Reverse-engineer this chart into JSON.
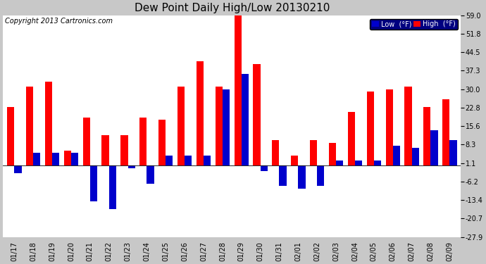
{
  "title": "Dew Point Daily High/Low 20130210",
  "copyright": "Copyright 2013 Cartronics.com",
  "legend_low": "Low  (°F)",
  "legend_high": "High  (°F)",
  "dates": [
    "01/17",
    "01/18",
    "01/19",
    "01/20",
    "01/21",
    "01/22",
    "01/23",
    "01/24",
    "01/25",
    "01/26",
    "01/27",
    "01/28",
    "01/29",
    "01/30",
    "01/31",
    "02/01",
    "02/02",
    "02/03",
    "02/04",
    "02/05",
    "02/06",
    "02/07",
    "02/08",
    "02/09"
  ],
  "high": [
    23,
    31,
    33,
    6,
    19,
    12,
    12,
    19,
    18,
    31,
    41,
    31,
    62,
    40,
    10,
    4,
    10,
    9,
    21,
    29,
    30,
    31,
    23,
    26
  ],
  "low": [
    -3,
    5,
    5,
    5,
    -14,
    -17,
    -1,
    -7,
    4,
    4,
    4,
    30,
    36,
    -2,
    -8,
    -9,
    -8,
    2,
    2,
    2,
    8,
    7,
    14,
    10
  ],
  "ylim_min": -27.9,
  "ylim_max": 59.0,
  "yticks": [
    -27.9,
    -20.7,
    -13.4,
    -6.2,
    1.1,
    8.3,
    15.6,
    22.8,
    30.0,
    37.3,
    44.5,
    51.8,
    59.0
  ],
  "bar_width": 0.38,
  "high_color": "#ff0000",
  "low_color": "#0000cc",
  "plot_bg_color": "#ffffff",
  "fig_bg_color": "#c8c8c8",
  "grid_color": "#ffffff",
  "title_fontsize": 11,
  "tick_fontsize": 7,
  "copyright_fontsize": 7,
  "legend_bg": "#000080",
  "legend_text": "#ffffff",
  "legend_fontsize": 7
}
